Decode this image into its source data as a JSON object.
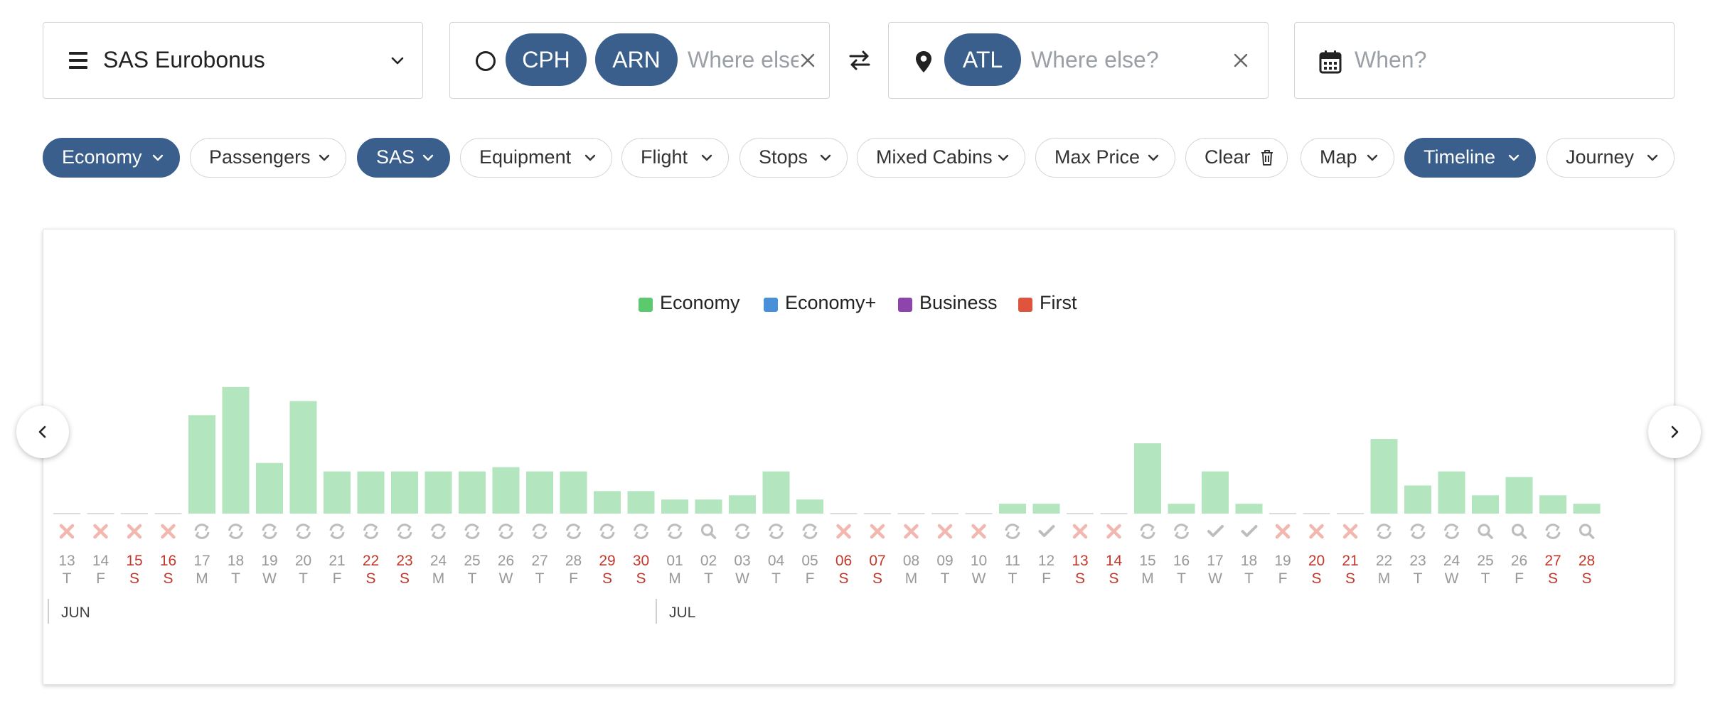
{
  "search": {
    "program": {
      "label": "SAS Eurobonus"
    },
    "origin": {
      "airports": [
        "CPH",
        "ARN"
      ],
      "placeholder": "Where else?"
    },
    "destination": {
      "airports": [
        "ATL"
      ],
      "placeholder": "Where else?"
    },
    "date": {
      "placeholder": "When?"
    }
  },
  "filters": [
    {
      "label": "Economy",
      "active": true,
      "icon": "chevron-down-icon"
    },
    {
      "label": "Passengers",
      "active": false,
      "icon": "chevron-down-icon"
    },
    {
      "label": "SAS",
      "active": true,
      "icon": "chevron-down-icon"
    },
    {
      "label": "Equipment",
      "active": false,
      "icon": "chevron-down-icon"
    },
    {
      "label": "Flight",
      "active": false,
      "icon": "chevron-down-icon"
    },
    {
      "label": "Stops",
      "active": false,
      "icon": "chevron-down-icon"
    },
    {
      "label": "Mixed Cabins",
      "active": false,
      "icon": "chevron-down-icon"
    },
    {
      "label": "Max Price",
      "active": false,
      "icon": "chevron-down-icon"
    },
    {
      "label": "Clear",
      "active": false,
      "icon": "trash-icon"
    },
    {
      "label": "Map",
      "active": false,
      "icon": "chevron-down-icon"
    },
    {
      "label": "Timeline",
      "active": true,
      "icon": "chevron-down-icon"
    },
    {
      "label": "Journey",
      "active": false,
      "icon": "chevron-down-icon"
    }
  ],
  "colors": {
    "accent": "#3b5f8c",
    "economy": "#5cc96e",
    "economy_bar": "#b3e6bf",
    "economy_plus": "#4a90d9",
    "business": "#8e44ad",
    "first": "#e0533d",
    "weekend": "#c0392b",
    "weekday": "#999999"
  },
  "chart_data": {
    "type": "bar",
    "legend": [
      {
        "name": "Economy",
        "color": "#5cc96e"
      },
      {
        "name": "Economy+",
        "color": "#4a90d9"
      },
      {
        "name": "Business",
        "color": "#8e44ad"
      },
      {
        "name": "First",
        "color": "#e0533d"
      }
    ],
    "months": [
      {
        "label": "JUN",
        "start_index": 0
      },
      {
        "label": "JUL",
        "start_index": 18
      }
    ],
    "days": [
      {
        "d": "13",
        "w": "T",
        "weekend": false,
        "status": "none",
        "value": 0
      },
      {
        "d": "14",
        "w": "F",
        "weekend": false,
        "status": "none",
        "value": 0
      },
      {
        "d": "15",
        "w": "S",
        "weekend": true,
        "status": "none",
        "value": 0
      },
      {
        "d": "16",
        "w": "S",
        "weekend": true,
        "status": "none",
        "value": 0
      },
      {
        "d": "17",
        "w": "M",
        "weekend": false,
        "status": "refresh",
        "value": 70
      },
      {
        "d": "18",
        "w": "T",
        "weekend": false,
        "status": "refresh",
        "value": 90
      },
      {
        "d": "19",
        "w": "W",
        "weekend": false,
        "status": "refresh",
        "value": 36
      },
      {
        "d": "20",
        "w": "T",
        "weekend": false,
        "status": "refresh",
        "value": 80
      },
      {
        "d": "21",
        "w": "F",
        "weekend": false,
        "status": "refresh",
        "value": 30
      },
      {
        "d": "22",
        "w": "S",
        "weekend": true,
        "status": "refresh",
        "value": 30
      },
      {
        "d": "23",
        "w": "S",
        "weekend": true,
        "status": "refresh",
        "value": 30
      },
      {
        "d": "24",
        "w": "M",
        "weekend": false,
        "status": "refresh",
        "value": 30
      },
      {
        "d": "25",
        "w": "T",
        "weekend": false,
        "status": "refresh",
        "value": 30
      },
      {
        "d": "26",
        "w": "W",
        "weekend": false,
        "status": "refresh",
        "value": 33
      },
      {
        "d": "27",
        "w": "T",
        "weekend": false,
        "status": "refresh",
        "value": 30
      },
      {
        "d": "28",
        "w": "F",
        "weekend": false,
        "status": "refresh",
        "value": 30
      },
      {
        "d": "29",
        "w": "S",
        "weekend": true,
        "status": "refresh",
        "value": 16
      },
      {
        "d": "30",
        "w": "S",
        "weekend": true,
        "status": "refresh",
        "value": 16
      },
      {
        "d": "01",
        "w": "M",
        "weekend": false,
        "status": "refresh",
        "value": 10
      },
      {
        "d": "02",
        "w": "T",
        "weekend": false,
        "status": "search",
        "value": 10
      },
      {
        "d": "03",
        "w": "W",
        "weekend": false,
        "status": "refresh",
        "value": 13
      },
      {
        "d": "04",
        "w": "T",
        "weekend": false,
        "status": "refresh",
        "value": 30
      },
      {
        "d": "05",
        "w": "F",
        "weekend": false,
        "status": "refresh",
        "value": 10
      },
      {
        "d": "06",
        "w": "S",
        "weekend": true,
        "status": "none",
        "value": 0
      },
      {
        "d": "07",
        "w": "S",
        "weekend": true,
        "status": "none",
        "value": 0
      },
      {
        "d": "08",
        "w": "M",
        "weekend": false,
        "status": "none",
        "value": 0
      },
      {
        "d": "09",
        "w": "T",
        "weekend": false,
        "status": "none",
        "value": 0
      },
      {
        "d": "10",
        "w": "W",
        "weekend": false,
        "status": "none",
        "value": 0
      },
      {
        "d": "11",
        "w": "T",
        "weekend": false,
        "status": "refresh",
        "value": 7
      },
      {
        "d": "12",
        "w": "F",
        "weekend": false,
        "status": "check",
        "value": 7
      },
      {
        "d": "13",
        "w": "S",
        "weekend": true,
        "status": "none",
        "value": 0
      },
      {
        "d": "14",
        "w": "S",
        "weekend": true,
        "status": "none",
        "value": 0
      },
      {
        "d": "15",
        "w": "M",
        "weekend": false,
        "status": "refresh",
        "value": 50
      },
      {
        "d": "16",
        "w": "T",
        "weekend": false,
        "status": "refresh",
        "value": 7
      },
      {
        "d": "17",
        "w": "W",
        "weekend": false,
        "status": "check",
        "value": 30
      },
      {
        "d": "18",
        "w": "T",
        "weekend": false,
        "status": "check",
        "value": 7
      },
      {
        "d": "19",
        "w": "F",
        "weekend": false,
        "status": "none",
        "value": 0
      },
      {
        "d": "20",
        "w": "S",
        "weekend": true,
        "status": "none",
        "value": 0
      },
      {
        "d": "21",
        "w": "S",
        "weekend": true,
        "status": "none",
        "value": 0
      },
      {
        "d": "22",
        "w": "M",
        "weekend": false,
        "status": "refresh",
        "value": 53
      },
      {
        "d": "23",
        "w": "T",
        "weekend": false,
        "status": "refresh",
        "value": 20
      },
      {
        "d": "24",
        "w": "W",
        "weekend": false,
        "status": "refresh",
        "value": 30
      },
      {
        "d": "25",
        "w": "T",
        "weekend": false,
        "status": "search",
        "value": 13
      },
      {
        "d": "26",
        "w": "F",
        "weekend": false,
        "status": "search",
        "value": 26
      },
      {
        "d": "27",
        "w": "S",
        "weekend": true,
        "status": "refresh",
        "value": 13
      },
      {
        "d": "28",
        "w": "S",
        "weekend": true,
        "status": "search",
        "value": 7
      }
    ]
  }
}
